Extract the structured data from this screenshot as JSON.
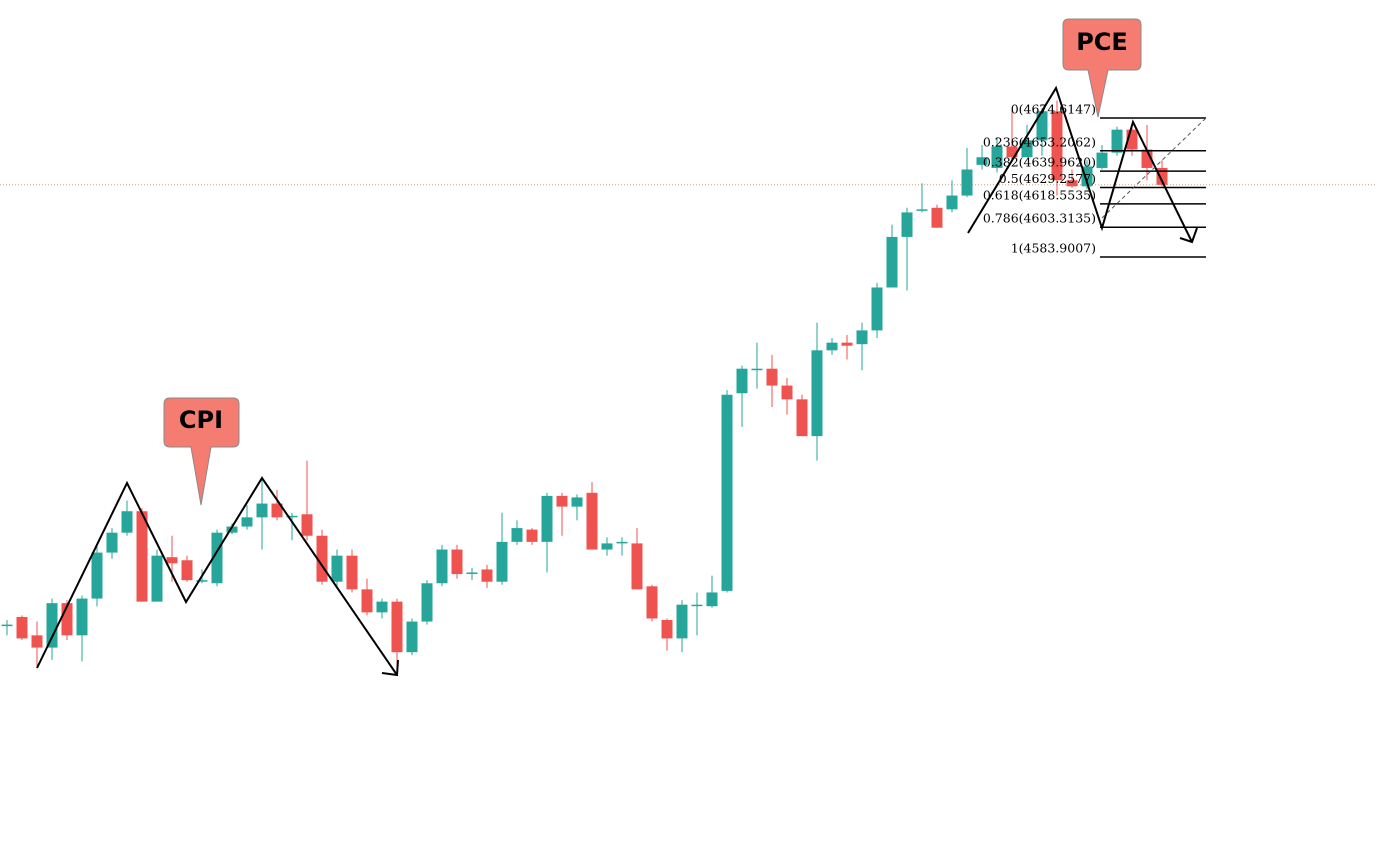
{
  "chart_data": {
    "type": "candlestick",
    "up_color": "#26a69a",
    "down_color": "#ef5350",
    "ylim": [
      4190.4,
      4751.6
    ],
    "open": [
      4344,
      4349,
      4337,
      4329,
      4358,
      4337,
      4361,
      4391,
      4404,
      4418,
      4359,
      4388,
      4386,
      4373,
      4371,
      4404,
      4408,
      4414,
      4423,
      4415,
      4416,
      4402,
      4372,
      4389,
      4367,
      4352,
      4359,
      4326,
      4346,
      4371,
      4393,
      4378,
      4380,
      4372,
      4398,
      4406,
      4398,
      4428,
      4421,
      4430,
      4393,
      4398,
      4397,
      4369,
      4347,
      4335,
      4357,
      4356,
      4366,
      4495,
      4511,
      4511,
      4500,
      4491,
      4467,
      4523,
      4528,
      4527,
      4536,
      4564,
      4597,
      4615,
      4616,
      4615,
      4624,
      4644,
      4642,
      4656,
      4649,
      4660,
      4679,
      4634,
      4630,
      4642,
      4652,
      4667,
      4654,
      4642
    ],
    "high": [
      4347,
      4350,
      4346,
      4361,
      4360,
      4363,
      4396,
      4407,
      4425,
      4420,
      4393,
      4402,
      4389,
      4380,
      4406,
      4410,
      4422,
      4440,
      4432,
      4417,
      4451,
      4406,
      4393,
      4393,
      4374,
      4361,
      4361,
      4348,
      4373,
      4396,
      4396,
      4381,
      4383,
      4417,
      4412,
      4407,
      4430,
      4430,
      4429,
      4437,
      4401,
      4401,
      4407,
      4370,
      4348,
      4360,
      4365,
      4376,
      4497,
      4513,
      4528,
      4520,
      4505,
      4494,
      4541,
      4531,
      4533,
      4541,
      4567,
      4605,
      4616,
      4632,
      4618,
      4634,
      4655,
      4657,
      4662,
      4680,
      4670,
      4681,
      4686,
      4641,
      4647,
      4657,
      4669,
      4670,
      4670,
      4647
    ],
    "low": [
      4337,
      4334,
      4316,
      4321,
      4334,
      4320,
      4356,
      4387,
      4402,
      4359,
      4359,
      4372,
      4372,
      4371,
      4369,
      4403,
      4406,
      4393,
      4412,
      4399,
      4399,
      4370,
      4369,
      4365,
      4350,
      4348,
      4313,
      4324,
      4344,
      4369,
      4374,
      4373,
      4368,
      4370,
      4396,
      4396,
      4378,
      4402,
      4412,
      4393,
      4389,
      4389,
      4367,
      4346,
      4327,
      4326,
      4337,
      4355,
      4365,
      4473,
      4498,
      4486,
      4481,
      4467,
      4451,
      4520,
      4517,
      4510,
      4531,
      4564,
      4562,
      4613,
      4603,
      4613,
      4623,
      4641,
      4639,
      4647,
      4649,
      4650,
      4624,
      4629,
      4628,
      4641,
      4650,
      4650,
      4634,
      4630
    ],
    "close": [
      4344,
      4335,
      4329,
      4358,
      4337,
      4361,
      4391,
      4404,
      4418,
      4359,
      4389,
      4384,
      4373,
      4373,
      4404,
      4408,
      4414,
      4423,
      4414,
      4415,
      4402,
      4372,
      4389,
      4367,
      4352,
      4359,
      4326,
      4346,
      4371,
      4393,
      4377,
      4378,
      4372,
      4398,
      4407,
      4398,
      4428,
      4421,
      4427,
      4393,
      4397,
      4398,
      4367,
      4348,
      4335,
      4357,
      4357,
      4365,
      4494,
      4511,
      4511,
      4500,
      4491,
      4467,
      4523,
      4528,
      4526,
      4536,
      4564,
      4597,
      4613,
      4615,
      4603,
      4624,
      4641,
      4649,
      4656,
      4649,
      4660,
      4679,
      4634,
      4630,
      4643,
      4652,
      4667,
      4654,
      4642,
      4631
    ],
    "price_line": 4631,
    "fib_levels": [
      {
        "value": 4674.6147,
        "label": "0(4674.6147)"
      },
      {
        "value": 4653.2062,
        "label": "0.236(4653.2062)"
      },
      {
        "value": 4639.962,
        "label": "0.382(4639.9620)"
      },
      {
        "value": 4629.2577,
        "label": "0.5(4629.2577)"
      },
      {
        "value": 4618.5535,
        "label": "0.618(4618.5535)"
      },
      {
        "value": 4603.3135,
        "label": "0.786(4603.3135)"
      },
      {
        "value": 4583.9007,
        "label": "1(4583.9007)"
      }
    ],
    "annotations": [
      "CPI",
      "PCE"
    ]
  }
}
